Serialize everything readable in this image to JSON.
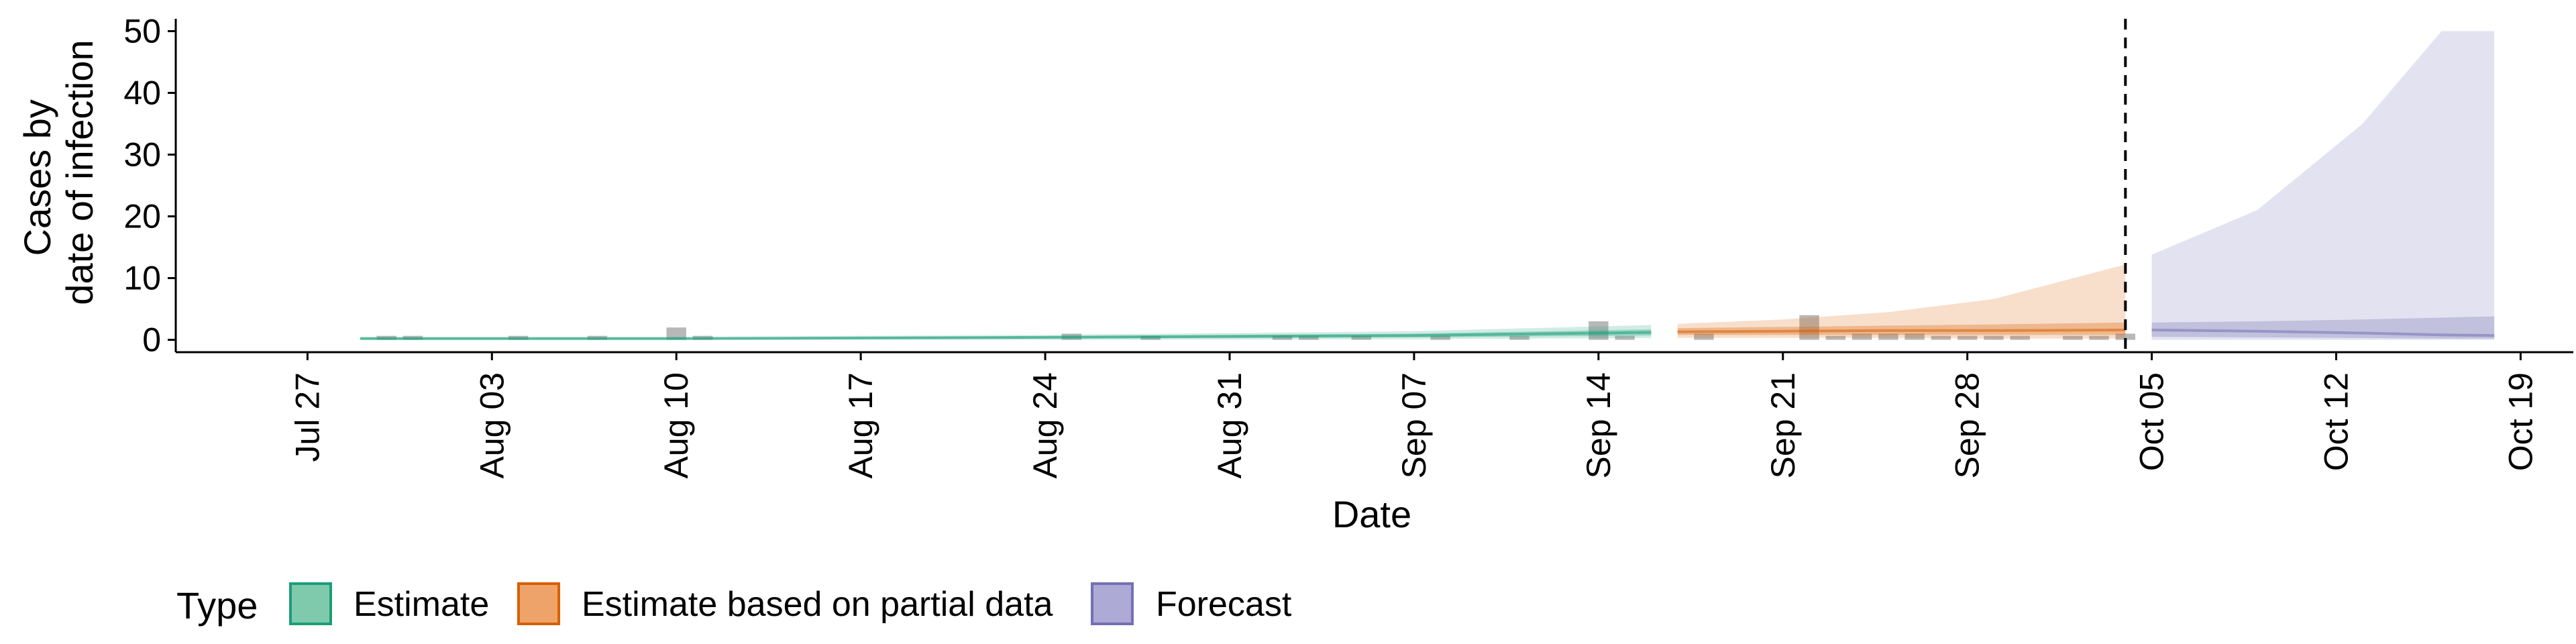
{
  "chart_data": {
    "type": "area",
    "xlabel": "Date",
    "ylabel_lines": [
      "Cases by",
      "date of infection"
    ],
    "ylim": [
      -2,
      52
    ],
    "yticks": [
      0,
      10,
      20,
      30,
      40,
      50
    ],
    "xlim": [
      "2020-07-22",
      "2020-10-21"
    ],
    "xticks": [
      {
        "date": "2020-07-27",
        "label": "Jul 27"
      },
      {
        "date": "2020-08-03",
        "label": "Aug 03"
      },
      {
        "date": "2020-08-10",
        "label": "Aug 10"
      },
      {
        "date": "2020-08-17",
        "label": "Aug 17"
      },
      {
        "date": "2020-08-24",
        "label": "Aug 24"
      },
      {
        "date": "2020-08-31",
        "label": "Aug 31"
      },
      {
        "date": "2020-09-07",
        "label": "Sep 07"
      },
      {
        "date": "2020-09-14",
        "label": "Sep 14"
      },
      {
        "date": "2020-09-21",
        "label": "Sep 21"
      },
      {
        "date": "2020-09-28",
        "label": "Sep 28"
      },
      {
        "date": "2020-10-05",
        "label": "Oct 05"
      },
      {
        "date": "2020-10-12",
        "label": "Oct 12"
      },
      {
        "date": "2020-10-19",
        "label": "Oct 19"
      }
    ],
    "forecast_line_date": "2020-10-04",
    "observed_cases": [
      {
        "date": "2020-07-30",
        "value": 0
      },
      {
        "date": "2020-07-31",
        "value": 0
      },
      {
        "date": "2020-08-04",
        "value": 0
      },
      {
        "date": "2020-08-07",
        "value": 0
      },
      {
        "date": "2020-08-10",
        "value": 2
      },
      {
        "date": "2020-08-11",
        "value": 0
      },
      {
        "date": "2020-08-25",
        "value": 1
      },
      {
        "date": "2020-08-28",
        "value": 0
      },
      {
        "date": "2020-09-02",
        "value": 0
      },
      {
        "date": "2020-09-03",
        "value": 0
      },
      {
        "date": "2020-09-05",
        "value": 0
      },
      {
        "date": "2020-09-08",
        "value": 0
      },
      {
        "date": "2020-09-11",
        "value": 0
      },
      {
        "date": "2020-09-14",
        "value": 3
      },
      {
        "date": "2020-09-15",
        "value": 0
      },
      {
        "date": "2020-09-18",
        "value": 1
      },
      {
        "date": "2020-09-22",
        "value": 4
      },
      {
        "date": "2020-09-23",
        "value": 0
      },
      {
        "date": "2020-09-24",
        "value": 1
      },
      {
        "date": "2020-09-25",
        "value": 1
      },
      {
        "date": "2020-09-26",
        "value": 1
      },
      {
        "date": "2020-09-27",
        "value": 0
      },
      {
        "date": "2020-09-28",
        "value": 0
      },
      {
        "date": "2020-09-29",
        "value": 0
      },
      {
        "date": "2020-09-30",
        "value": 0
      },
      {
        "date": "2020-10-02",
        "value": 0
      },
      {
        "date": "2020-10-03",
        "value": 0
      },
      {
        "date": "2020-10-04",
        "value": 1
      }
    ],
    "series": [
      {
        "name": "Estimate",
        "color": "#1b9e77",
        "x": [
          "2020-07-29",
          "2020-08-10",
          "2020-08-24",
          "2020-09-07",
          "2020-09-16"
        ],
        "median": [
          0.2,
          0.2,
          0.4,
          0.7,
          1.2
        ],
        "lower90": [
          0.0,
          0.0,
          0.0,
          0.1,
          0.3
        ],
        "upper90": [
          0.5,
          0.5,
          0.8,
          1.4,
          2.4
        ],
        "lower50": [
          0.1,
          0.1,
          0.2,
          0.4,
          0.7
        ],
        "upper50": [
          0.3,
          0.3,
          0.6,
          1.0,
          1.7
        ]
      },
      {
        "name": "Estimate based on partial data",
        "color": "#d95f02",
        "x": [
          "2020-09-17",
          "2020-09-21",
          "2020-09-25",
          "2020-09-29",
          "2020-10-04"
        ],
        "median": [
          1.3,
          1.4,
          1.5,
          1.5,
          1.6
        ],
        "lower90": [
          0.3,
          0.3,
          0.3,
          0.2,
          0.2
        ],
        "upper90": [
          2.6,
          3.3,
          4.5,
          6.6,
          12.2
        ],
        "lower50": [
          0.8,
          0.8,
          0.8,
          0.8,
          0.8
        ],
        "upper50": [
          1.9,
          2.1,
          2.3,
          2.5,
          2.8
        ]
      },
      {
        "name": "Forecast",
        "color": "#7570b3",
        "x": [
          "2020-10-05",
          "2020-10-09",
          "2020-10-13",
          "2020-10-16",
          "2020-10-18"
        ],
        "median": [
          1.6,
          1.4,
          1.1,
          0.8,
          0.7
        ],
        "lower90": [
          0.0,
          0.0,
          0.0,
          0.0,
          0.0
        ],
        "upper90": [
          13.8,
          21.0,
          35.0,
          50.0,
          50.0
        ],
        "lower50": [
          0.5,
          0.4,
          0.3,
          0.2,
          0.2
        ],
        "upper50": [
          2.8,
          3.0,
          3.3,
          3.6,
          3.8
        ]
      }
    ]
  },
  "legend": {
    "title": "Type",
    "items": [
      {
        "label": "Estimate",
        "fill": "#7fc9ad",
        "border": "#1b9e77"
      },
      {
        "label": "Estimate based on partial data",
        "fill": "#eea36a",
        "border": "#d95f02"
      },
      {
        "label": "Forecast",
        "fill": "#adaad6",
        "border": "#7570b3"
      }
    ]
  }
}
